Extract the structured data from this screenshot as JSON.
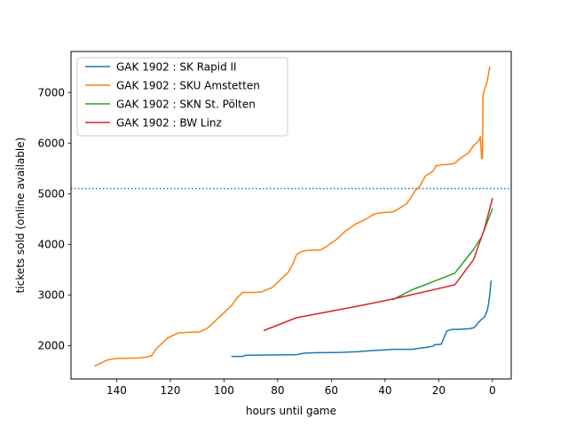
{
  "chart_data": {
    "type": "line",
    "title": "",
    "xlabel": "hours until game",
    "ylabel": "tickets sold (online available)",
    "xlim": [
      157,
      -7
    ],
    "ylim": [
      1340,
      7810
    ],
    "xticks": [
      140,
      120,
      100,
      80,
      60,
      40,
      20,
      0
    ],
    "yticks": [
      2000,
      3000,
      4000,
      5000,
      6000,
      7000
    ],
    "grid": false,
    "legend_position": "top-left",
    "reference_line": {
      "y": 5100,
      "style": "dotted",
      "color": "#1f77b4"
    },
    "series": [
      {
        "name": "GAK 1902 : SK Rapid II",
        "color": "#1f77b4",
        "x": [
          97,
          93,
          92,
          90,
          80,
          73,
          70,
          65,
          56,
          50,
          45,
          40,
          37,
          30,
          28,
          24,
          22,
          21.5,
          20,
          19,
          17,
          15,
          13,
          9,
          7,
          6,
          5,
          4,
          3,
          2,
          1.5,
          1,
          0.5
        ],
        "y": [
          1785,
          1785,
          1810,
          1810,
          1815,
          1820,
          1850,
          1860,
          1865,
          1880,
          1900,
          1915,
          1925,
          1925,
          1940,
          1970,
          1990,
          2020,
          2020,
          2030,
          2290,
          2320,
          2320,
          2330,
          2350,
          2400,
          2470,
          2520,
          2560,
          2680,
          2800,
          3000,
          3270
        ]
      },
      {
        "name": "GAK 1902 : SKU Amstetten",
        "color": "#ff7f0e",
        "x": [
          148,
          146,
          144,
          143,
          142,
          140,
          136,
          132,
          129,
          127,
          125,
          123,
          121,
          119,
          117,
          114,
          109,
          106,
          103,
          100,
          97,
          95,
          93,
          88,
          86,
          82,
          79,
          76,
          74,
          73,
          71,
          69,
          64,
          62,
          58,
          55,
          51,
          47,
          44,
          42,
          40,
          37,
          35,
          32,
          30,
          29,
          27,
          25,
          22,
          21,
          19,
          16,
          14,
          12,
          9,
          7,
          5,
          4.5,
          4,
          3.7,
          3.5,
          3,
          2,
          1
        ],
        "y": [
          1600,
          1650,
          1700,
          1720,
          1730,
          1745,
          1750,
          1755,
          1770,
          1800,
          1950,
          2050,
          2150,
          2200,
          2250,
          2260,
          2270,
          2350,
          2500,
          2650,
          2800,
          2950,
          3050,
          3050,
          3060,
          3150,
          3300,
          3450,
          3650,
          3800,
          3860,
          3880,
          3890,
          3950,
          4100,
          4250,
          4400,
          4500,
          4600,
          4620,
          4630,
          4640,
          4700,
          4800,
          4950,
          5050,
          5150,
          5350,
          5450,
          5550,
          5570,
          5580,
          5600,
          5700,
          5800,
          5950,
          6050,
          6130,
          5690,
          5700,
          6950,
          7050,
          7200,
          7500
        ]
      },
      {
        "name": "GAK 1902 : SKN St. Pölten",
        "color": "#2ca02c",
        "x": [
          37,
          30,
          14,
          10,
          7,
          4,
          0
        ],
        "y": [
          2910,
          3100,
          3430,
          3700,
          3900,
          4150,
          4700
        ]
      },
      {
        "name": "GAK 1902 : BW Linz",
        "color": "#d62728",
        "x": [
          85,
          73,
          50,
          37,
          14,
          7,
          3,
          0
        ],
        "y": [
          2300,
          2550,
          2780,
          2920,
          3200,
          3700,
          4300,
          4900
        ]
      }
    ]
  }
}
